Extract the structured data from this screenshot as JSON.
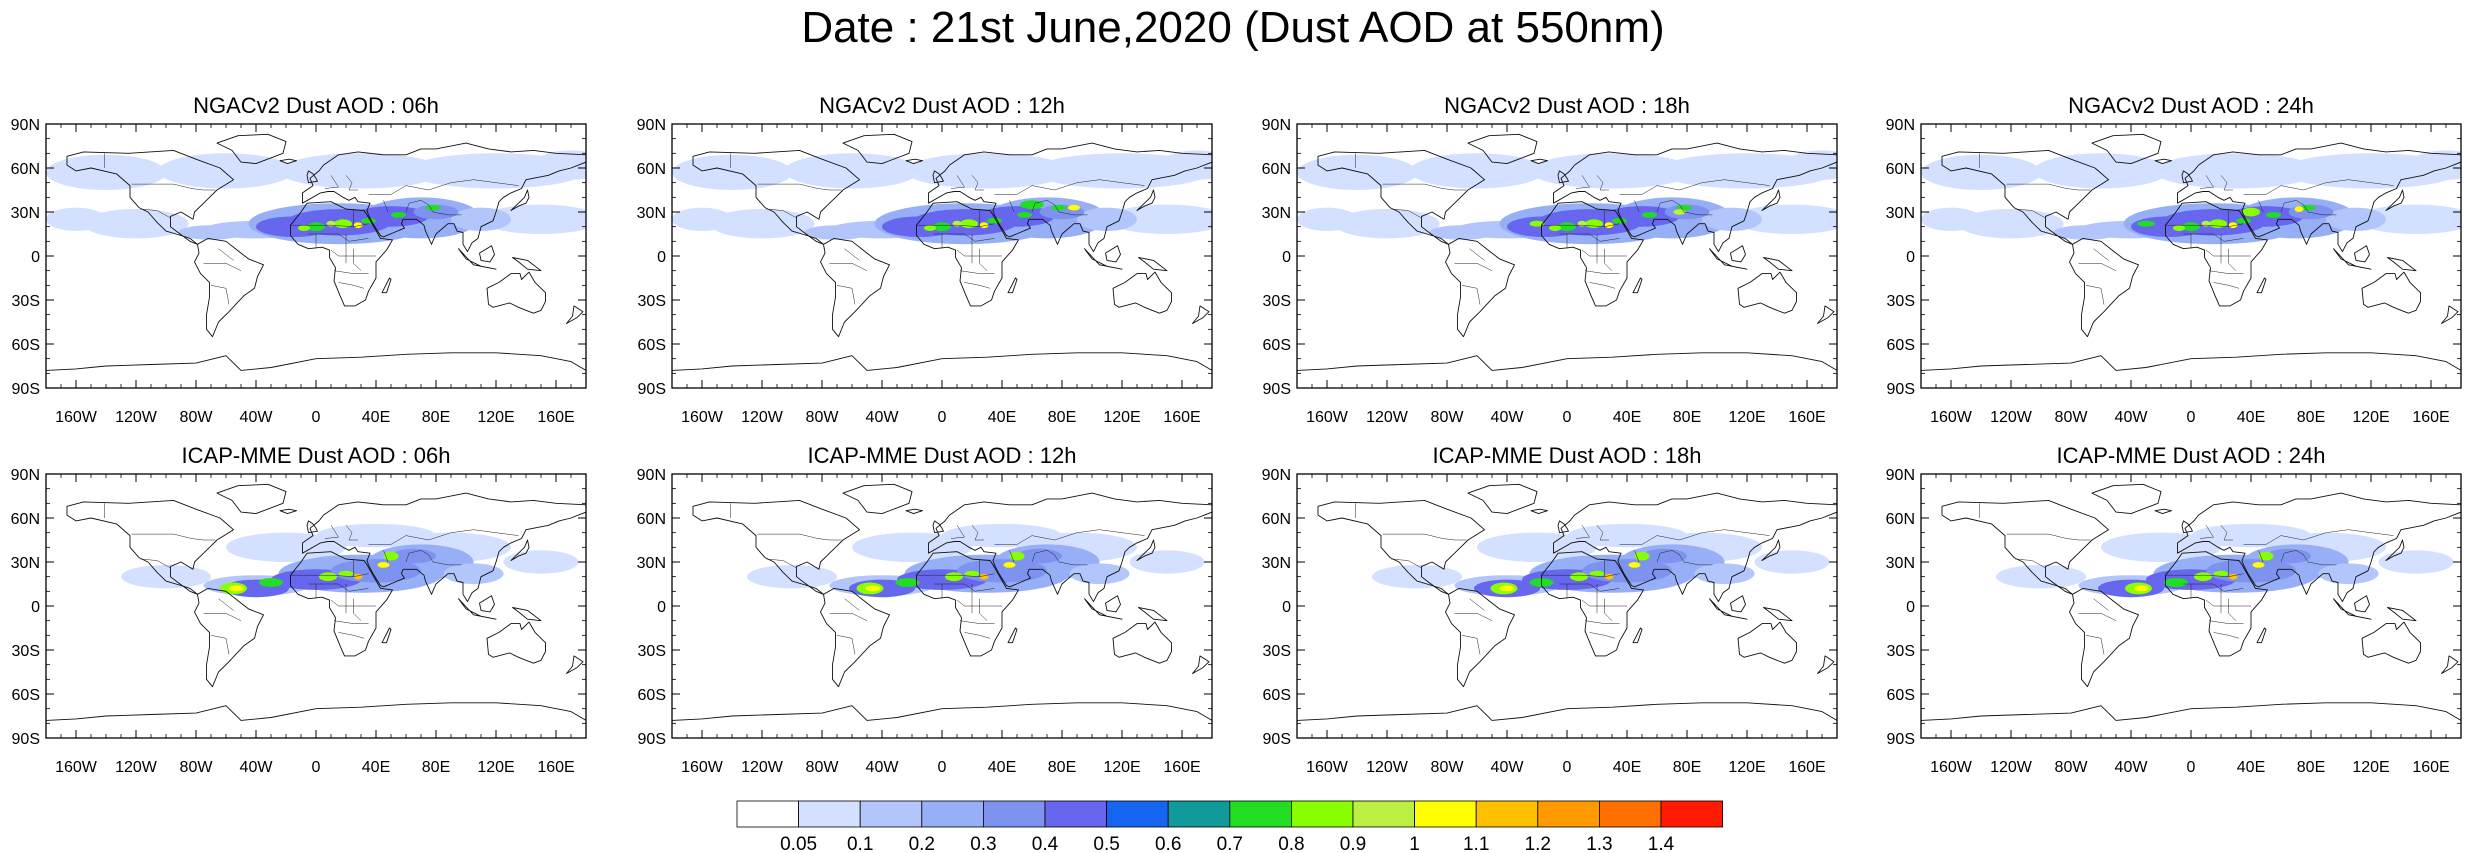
{
  "title": "Date : 21st June,2020 (Dust AOD at 550nm)",
  "panels": [
    {
      "title": "NGACv2 Dust AOD : 06h",
      "model": "NGACv2",
      "hour": "06h"
    },
    {
      "title": "NGACv2 Dust AOD : 12h",
      "model": "NGACv2",
      "hour": "12h"
    },
    {
      "title": "NGACv2 Dust AOD : 18h",
      "model": "NGACv2",
      "hour": "18h"
    },
    {
      "title": "NGACv2 Dust AOD : 24h",
      "model": "NGACv2",
      "hour": "24h"
    },
    {
      "title": "ICAP-MME Dust AOD : 06h",
      "model": "ICAP-MME",
      "hour": "06h"
    },
    {
      "title": "ICAP-MME Dust AOD : 12h",
      "model": "ICAP-MME",
      "hour": "12h"
    },
    {
      "title": "ICAP-MME Dust AOD : 18h",
      "model": "ICAP-MME",
      "hour": "18h"
    },
    {
      "title": "ICAP-MME Dust AOD : 24h",
      "model": "ICAP-MME",
      "hour": "24h"
    }
  ],
  "axes": {
    "lat_ticks": [
      "90N",
      "60N",
      "30N",
      "0",
      "30S",
      "60S",
      "90S"
    ],
    "lon_ticks": [
      "160W",
      "120W",
      "80W",
      "40W",
      "0",
      "40E",
      "80E",
      "120E",
      "160E"
    ],
    "lon_values": [
      -160,
      -120,
      -80,
      -40,
      0,
      40,
      80,
      120,
      160
    ],
    "lat_values": [
      90,
      60,
      30,
      0,
      -30,
      -60,
      -90
    ]
  },
  "colorbar": {
    "labels": [
      "0.05",
      "0.1",
      "0.2",
      "0.3",
      "0.4",
      "0.5",
      "0.6",
      "0.7",
      "0.8",
      "0.9",
      "1",
      "1.1",
      "1.2",
      "1.3",
      "1.4"
    ],
    "colors": [
      "#ffffff",
      "#d4e0ff",
      "#b3c6fb",
      "#97aff6",
      "#7e92f0",
      "#6666ee",
      "#1466f0",
      "#109a9a",
      "#22dd22",
      "#88ff00",
      "#bbf040",
      "#ffff00",
      "#ffc000",
      "#ff9a00",
      "#ff7000",
      "#ff1a00"
    ]
  }
}
